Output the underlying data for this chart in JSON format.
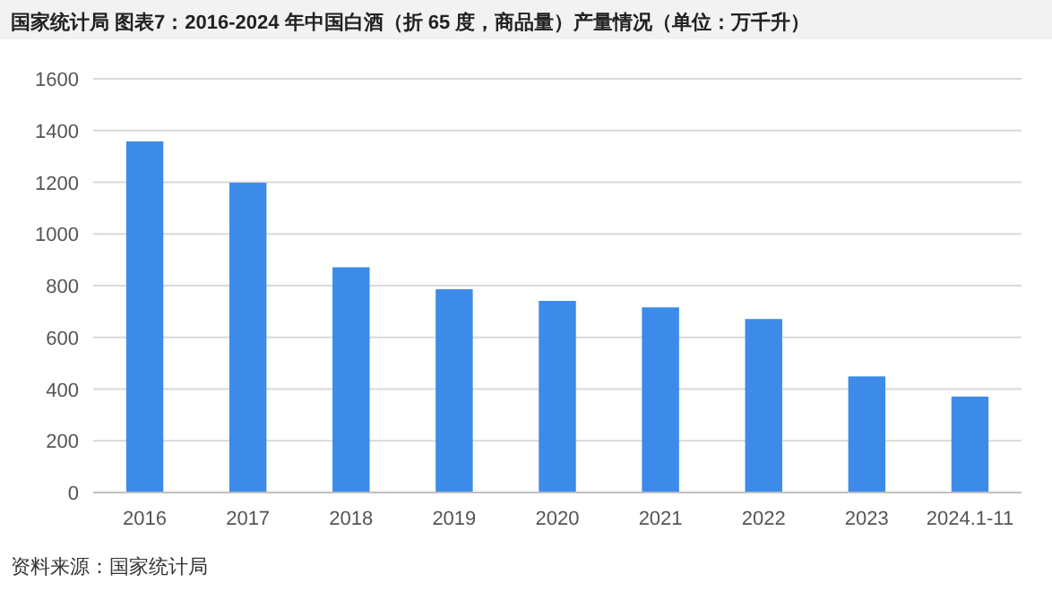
{
  "chart_data": {
    "type": "bar",
    "title": "国家统计局  图表7：2016-2024 年中国白酒（折 65 度，商品量）产量情况（单位：万千升）",
    "categories": [
      "2016",
      "2017",
      "2018",
      "2019",
      "2020",
      "2021",
      "2022",
      "2023",
      "2024.1-11"
    ],
    "values": [
      1358,
      1198,
      871,
      786,
      741,
      716,
      671,
      449,
      371
    ],
    "color": "#3d8be8",
    "ylim": [
      0,
      1600
    ],
    "yticks": [
      0,
      200,
      400,
      600,
      800,
      1000,
      1200,
      1400,
      1600
    ],
    "grid": "y",
    "annotations": [
      "资料来源：国家统计局"
    ]
  }
}
